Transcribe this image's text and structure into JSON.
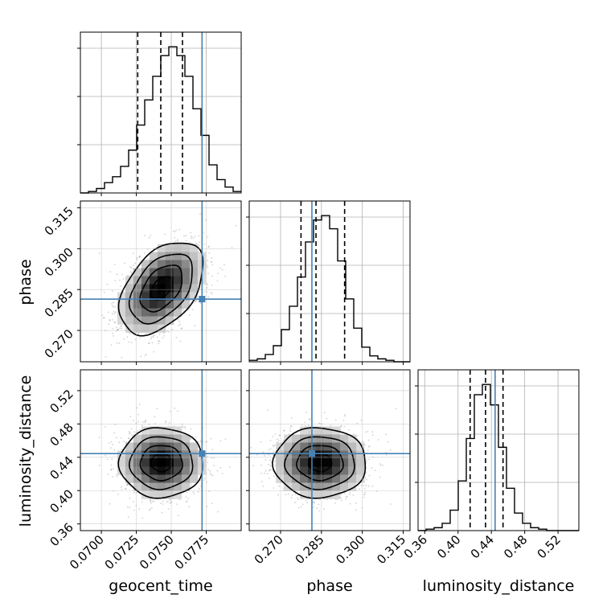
{
  "chart_data": {
    "type": "corner",
    "parameters": [
      "geocent_time",
      "phase",
      "luminosity_distance"
    ],
    "truths": {
      "geocent_time": 0.0772,
      "phase": 0.2815,
      "luminosity_distance": 0.4445
    },
    "truth_color": "#4682b4",
    "grid": true,
    "axes": {
      "geocent_time": {
        "label": "geocent_time",
        "range": [
          0.0685,
          0.08
        ],
        "ticks": [
          0.07,
          0.0725,
          0.075,
          0.0775
        ],
        "tick_labels": [
          "0.0700",
          "0.0725",
          "0.0750",
          "0.0775"
        ]
      },
      "phase": {
        "label": "phase",
        "range": [
          0.2585,
          0.3175
        ],
        "ticks": [
          0.27,
          0.285,
          0.3,
          0.315
        ],
        "tick_labels": [
          "0.270",
          "0.285",
          "0.300",
          "0.315"
        ]
      },
      "luminosity_distance": {
        "label": "luminosity_distance",
        "range": [
          0.352,
          0.545
        ],
        "ticks": [
          0.36,
          0.4,
          0.44,
          0.48,
          0.52
        ],
        "tick_labels": [
          "0.36",
          "0.40",
          "0.44",
          "0.48",
          "0.52"
        ]
      }
    },
    "histograms": {
      "geocent_time": {
        "x_start": 0.0685,
        "bin_width": 0.000575,
        "values": [
          0,
          1,
          3,
          7,
          11,
          18,
          29,
          46,
          63,
          79,
          93,
          99,
          93,
          79,
          57,
          39,
          19,
          9,
          4,
          1
        ],
        "quantiles": [
          0.0726,
          0.07425,
          0.0758
        ]
      },
      "phase": {
        "x_start": 0.2585,
        "bin_width": 0.00295,
        "values": [
          1,
          2,
          5,
          11,
          22,
          38,
          58,
          82,
          97,
          100,
          91,
          69,
          43,
          23,
          10,
          4,
          2,
          1,
          0,
          0
        ],
        "quantiles": [
          0.2775,
          0.283,
          0.2935
        ]
      },
      "luminosity_distance": {
        "x_start": 0.352,
        "bin_width": 0.00965,
        "values": [
          0,
          1,
          2,
          5,
          14,
          34,
          63,
          93,
          100,
          86,
          57,
          29,
          12,
          5,
          2,
          1,
          0,
          0,
          0,
          0
        ],
        "quantiles": [
          0.4145,
          0.433,
          0.454
        ]
      }
    },
    "joint_2d": [
      {
        "x": "geocent_time",
        "y": "phase",
        "center": [
          0.0743,
          0.2855
        ],
        "sigma": [
          0.0015,
          0.0085
        ],
        "correlation": 0.45
      },
      {
        "x": "geocent_time",
        "y": "luminosity_distance",
        "center": [
          0.0743,
          0.4335
        ],
        "sigma": [
          0.0015,
          0.021
        ],
        "correlation": 0.0
      },
      {
        "x": "phase",
        "y": "luminosity_distance",
        "center": [
          0.2845,
          0.4335
        ],
        "sigma": [
          0.0085,
          0.021
        ],
        "correlation": 0.0
      }
    ]
  }
}
